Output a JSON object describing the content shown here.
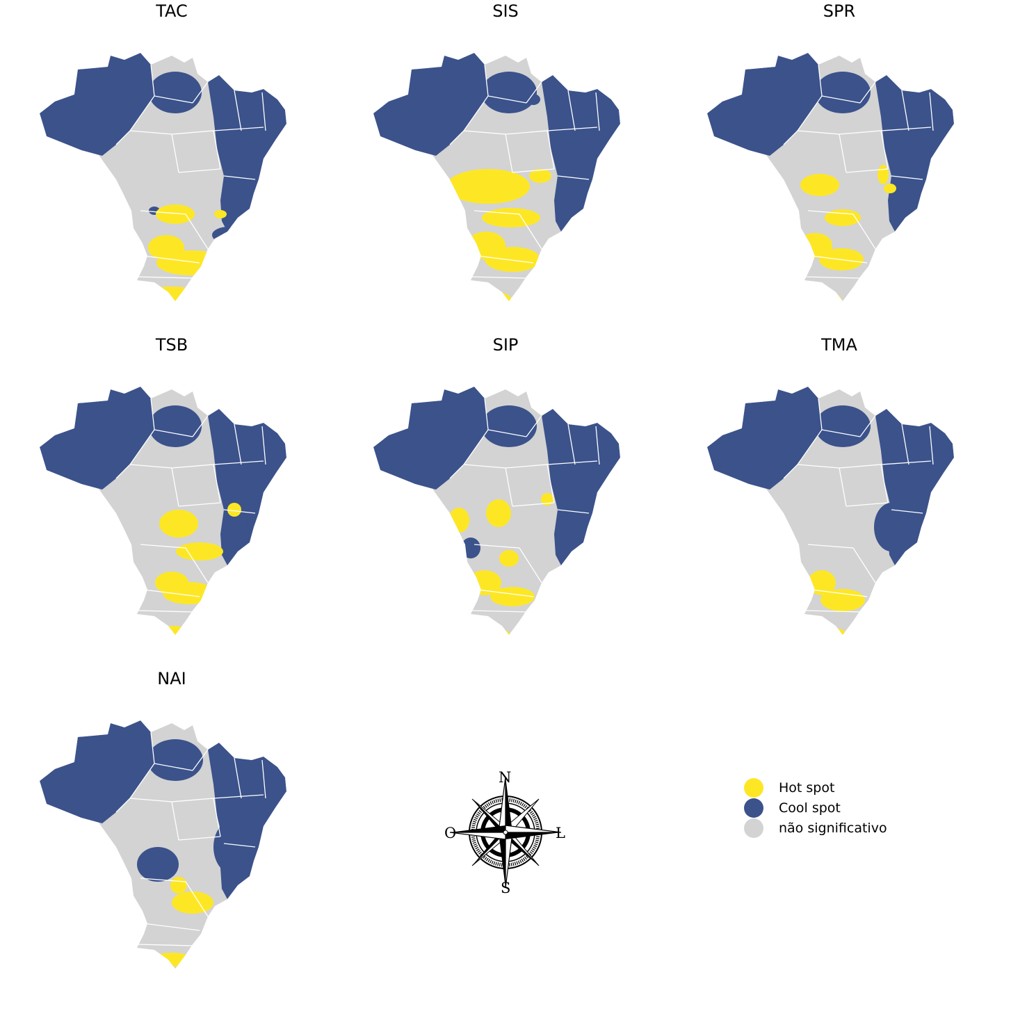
{
  "colors": {
    "hot": "#fde725",
    "cool": "#3b528b",
    "ns": "#d3d3d3",
    "border": "#ffffff"
  },
  "panels": [
    {
      "title": "TAC",
      "hot": [
        [
          215,
          270,
          28,
          14
        ],
        [
          202,
          318,
          26,
          18
        ],
        [
          238,
          340,
          50,
          18
        ],
        [
          210,
          388,
          45,
          14
        ],
        [
          280,
          270,
          9,
          6
        ]
      ],
      "cool": [
        [
          72,
          100,
          40,
          40
        ],
        [
          215,
          95,
          38,
          30
        ],
        [
          305,
          230,
          12,
          18
        ],
        [
          292,
          300,
          24,
          12
        ],
        [
          185,
          265,
          8,
          6
        ]
      ]
    },
    {
      "title": "SIS",
      "hot": [
        [
          185,
          230,
          60,
          25
        ],
        [
          260,
          215,
          16,
          10
        ],
        [
          218,
          275,
          42,
          14
        ],
        [
          182,
          315,
          28,
          20
        ],
        [
          220,
          335,
          40,
          18
        ],
        [
          180,
          395,
          40,
          16
        ]
      ],
      "cool": [
        [
          72,
          100,
          40,
          40
        ],
        [
          215,
          95,
          40,
          30
        ],
        [
          250,
          105,
          10,
          8
        ],
        [
          305,
          235,
          15,
          18
        ]
      ]
    },
    {
      "title": "SPR",
      "hot": [
        [
          182,
          228,
          28,
          16
        ],
        [
          215,
          275,
          26,
          12
        ],
        [
          175,
          315,
          25,
          18
        ],
        [
          213,
          335,
          32,
          16
        ],
        [
          180,
          395,
          34,
          16
        ],
        [
          273,
          213,
          8,
          14
        ],
        [
          283,
          233,
          9,
          7
        ]
      ],
      "cool": [
        [
          72,
          100,
          40,
          40
        ],
        [
          215,
          95,
          40,
          30
        ],
        [
          305,
          235,
          15,
          18
        ]
      ]
    },
    {
      "title": "TSB",
      "hot": [
        [
          220,
          235,
          28,
          20
        ],
        [
          250,
          275,
          34,
          13
        ],
        [
          210,
          320,
          24,
          16
        ],
        [
          235,
          335,
          38,
          16
        ],
        [
          210,
          400,
          40,
          18
        ],
        [
          300,
          215,
          10,
          10
        ]
      ],
      "cool": [
        [
          72,
          100,
          40,
          40
        ],
        [
          215,
          95,
          38,
          30
        ],
        [
          305,
          235,
          15,
          18
        ]
      ]
    },
    {
      "title": "SIP",
      "hot": [
        [
          143,
          230,
          15,
          18
        ],
        [
          200,
          220,
          18,
          20
        ],
        [
          215,
          285,
          14,
          12
        ],
        [
          180,
          320,
          24,
          18
        ],
        [
          220,
          340,
          32,
          14
        ],
        [
          180,
          400,
          40,
          18
        ],
        [
          270,
          200,
          9,
          9
        ]
      ],
      "cool": [
        [
          72,
          100,
          40,
          40
        ],
        [
          215,
          95,
          40,
          30
        ],
        [
          160,
          270,
          14,
          15
        ],
        [
          305,
          240,
          20,
          25
        ]
      ]
    },
    {
      "title": "TMA",
      "hot": [
        [
          185,
          320,
          20,
          18
        ],
        [
          215,
          345,
          32,
          16
        ],
        [
          185,
          400,
          40,
          18
        ]
      ],
      "cool": [
        [
          72,
          100,
          40,
          40
        ],
        [
          215,
          95,
          40,
          30
        ],
        [
          285,
          240,
          25,
          35
        ]
      ]
    },
    {
      "title": "NAI",
      "hot": [
        [
          220,
          275,
          12,
          12
        ],
        [
          240,
          300,
          30,
          16
        ],
        [
          210,
          382,
          30,
          10
        ]
      ],
      "cool": [
        [
          72,
          100,
          40,
          40
        ],
        [
          215,
          95,
          40,
          30
        ],
        [
          300,
          220,
          30,
          40
        ],
        [
          190,
          245,
          30,
          25
        ]
      ]
    }
  ],
  "compass": {
    "n": "N",
    "s": "S",
    "w": "O",
    "e": "L"
  },
  "legend": [
    {
      "label": "Hot spot",
      "color": "#fde725"
    },
    {
      "label": "Cool spot",
      "color": "#3b528b"
    },
    {
      "label": "não significativo",
      "color": "#d3d3d3"
    }
  ]
}
